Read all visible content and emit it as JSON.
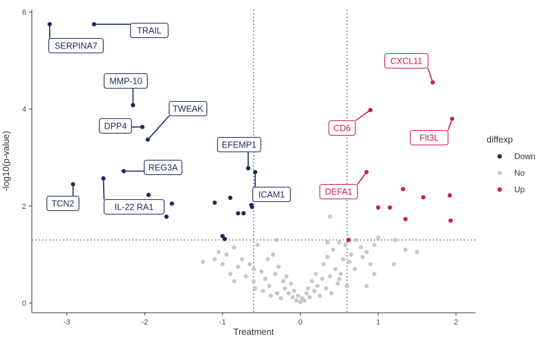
{
  "chart_data": {
    "type": "scatter",
    "title": "",
    "xlabel": "Treatment",
    "ylabel": "-log10(p-value)",
    "xlim": [
      -3.45,
      2.25
    ],
    "ylim": [
      -0.2,
      6.05
    ],
    "x_ticks": [
      -3,
      -2,
      -1,
      0,
      1,
      2
    ],
    "y_ticks": [
      0,
      2,
      4,
      6
    ],
    "grid": false,
    "thresholds": {
      "x": [
        -0.6,
        0.6
      ],
      "y": 1.3
    },
    "legend": {
      "title": "diffexp",
      "position": "right",
      "entries": [
        {
          "label": "Down",
          "color": "#1b2a5e"
        },
        {
          "label": "No",
          "color": "#c8c8c8"
        },
        {
          "label": "Up",
          "color": "#cc1a5a"
        }
      ]
    },
    "series": [
      {
        "name": "Down",
        "color": "#1b2a5e",
        "points": [
          [
            -3.22,
            5.75
          ],
          [
            -2.65,
            5.75
          ],
          [
            -2.15,
            4.08
          ],
          [
            -2.03,
            3.63
          ],
          [
            -1.96,
            3.37
          ],
          [
            -2.27,
            2.72
          ],
          [
            -2.53,
            2.57
          ],
          [
            -2.92,
            2.45
          ],
          [
            -1.95,
            2.23
          ],
          [
            -1.65,
            2.05
          ],
          [
            -1.72,
            1.78
          ],
          [
            -1.1,
            2.07
          ],
          [
            -0.9,
            2.17
          ],
          [
            -0.8,
            1.85
          ],
          [
            -0.73,
            1.85
          ],
          [
            -0.67,
            2.78
          ],
          [
            -0.58,
            2.7
          ],
          [
            -0.63,
            2.02
          ],
          [
            -0.62,
            1.98
          ],
          [
            -1.0,
            1.38
          ],
          [
            -0.97,
            1.32
          ]
        ]
      },
      {
        "name": "No",
        "color": "#c8c8c8",
        "points": [
          [
            -1.25,
            0.85
          ],
          [
            -1.1,
            0.9
          ],
          [
            -1.05,
            1.05
          ],
          [
            -1.0,
            0.8
          ],
          [
            -0.95,
            1.0
          ],
          [
            -0.9,
            0.6
          ],
          [
            -0.85,
            1.15
          ],
          [
            -0.8,
            0.75
          ],
          [
            -0.75,
            0.9
          ],
          [
            -0.7,
            0.55
          ],
          [
            -0.65,
            0.8
          ],
          [
            -0.6,
            0.45
          ],
          [
            -0.58,
            0.3
          ],
          [
            -0.55,
            1.2
          ],
          [
            -0.5,
            0.65
          ],
          [
            -0.48,
            0.25
          ],
          [
            -0.45,
            0.5
          ],
          [
            -0.42,
            0.9
          ],
          [
            -0.4,
            0.35
          ],
          [
            -0.38,
            0.15
          ],
          [
            -0.35,
            1.0
          ],
          [
            -0.32,
            0.6
          ],
          [
            -0.3,
            0.2
          ],
          [
            -0.28,
            0.75
          ],
          [
            -0.25,
            0.1
          ],
          [
            -0.22,
            0.45
          ],
          [
            -0.2,
            0.3
          ],
          [
            -0.18,
            0.55
          ],
          [
            -0.15,
            0.2
          ],
          [
            -0.12,
            0.4
          ],
          [
            -0.1,
            0.12
          ],
          [
            -0.08,
            0.25
          ],
          [
            -0.05,
            0.05
          ],
          [
            -0.03,
            0.15
          ],
          [
            0.0,
            0.02
          ],
          [
            0.02,
            0.1
          ],
          [
            0.05,
            0.05
          ],
          [
            0.08,
            0.2
          ],
          [
            0.1,
            0.3
          ],
          [
            0.12,
            0.12
          ],
          [
            0.15,
            0.45
          ],
          [
            0.18,
            0.25
          ],
          [
            0.2,
            0.6
          ],
          [
            0.22,
            0.35
          ],
          [
            0.25,
            0.15
          ],
          [
            0.28,
            0.5
          ],
          [
            0.3,
            0.8
          ],
          [
            0.33,
            0.3
          ],
          [
            0.35,
            0.95
          ],
          [
            0.38,
            0.55
          ],
          [
            0.4,
            0.2
          ],
          [
            0.42,
            1.1
          ],
          [
            0.45,
            0.7
          ],
          [
            0.48,
            0.4
          ],
          [
            0.5,
            1.25
          ],
          [
            0.52,
            0.6
          ],
          [
            0.55,
            0.9
          ],
          [
            0.58,
            1.2
          ],
          [
            0.6,
            0.35
          ],
          [
            0.63,
            0.85
          ],
          [
            0.65,
            1.0
          ],
          [
            0.7,
            0.7
          ],
          [
            0.72,
            1.3
          ],
          [
            0.78,
            1.15
          ],
          [
            0.8,
            0.95
          ],
          [
            0.85,
            1.05
          ],
          [
            0.9,
            0.8
          ],
          [
            0.95,
            1.2
          ],
          [
            1.0,
            1.35
          ],
          [
            0.35,
            1.25
          ],
          [
            -0.3,
            1.3
          ],
          [
            -0.85,
            0.45
          ],
          [
            0.85,
            0.35
          ],
          [
            0.95,
            0.6
          ],
          [
            1.2,
            0.8
          ],
          [
            1.35,
            1.1
          ],
          [
            1.5,
            1.05
          ],
          [
            1.22,
            1.3
          ],
          [
            0.5,
            0.5
          ],
          [
            -0.6,
            0.7
          ],
          [
            0.38,
            1.78
          ]
        ]
      },
      {
        "name": "Up",
        "color": "#cc1a5a",
        "points": [
          [
            1.7,
            4.55
          ],
          [
            0.9,
            3.98
          ],
          [
            1.95,
            3.8
          ],
          [
            0.85,
            2.7
          ],
          [
            1.32,
            2.35
          ],
          [
            1.92,
            2.22
          ],
          [
            1.58,
            2.18
          ],
          [
            1.0,
            1.97
          ],
          [
            1.15,
            1.97
          ],
          [
            1.35,
            1.73
          ],
          [
            1.93,
            1.7
          ],
          [
            0.62,
            1.3
          ]
        ]
      }
    ],
    "labels": [
      {
        "text": "SERPINA7",
        "group": "Down",
        "point": [
          -3.22,
          5.75
        ]
      },
      {
        "text": "TRAIL",
        "group": "Down",
        "point": [
          -2.65,
          5.75
        ]
      },
      {
        "text": "MMP-10",
        "group": "Down",
        "point": [
          -2.15,
          4.08
        ]
      },
      {
        "text": "TWEAK",
        "group": "Down",
        "point": [
          -1.96,
          3.37
        ]
      },
      {
        "text": "DPP4",
        "group": "Down",
        "point": [
          -2.03,
          3.63
        ]
      },
      {
        "text": "REG3A",
        "group": "Down",
        "point": [
          -2.27,
          2.72
        ]
      },
      {
        "text": "TCN2",
        "group": "Down",
        "point": [
          -2.92,
          2.45
        ]
      },
      {
        "text": "IL-22 RA1",
        "group": "Down",
        "point": [
          -2.53,
          2.57
        ]
      },
      {
        "text": "EFEMP1",
        "group": "Down",
        "point": [
          -0.67,
          2.78
        ]
      },
      {
        "text": "ICAM1",
        "group": "Down",
        "point": [
          -0.58,
          2.7
        ]
      },
      {
        "text": "CXCL11",
        "group": "Up",
        "point": [
          1.7,
          4.55
        ]
      },
      {
        "text": "CD6",
        "group": "Up",
        "point": [
          0.9,
          3.98
        ]
      },
      {
        "text": "Flt3L",
        "group": "Up",
        "point": [
          1.95,
          3.8
        ]
      },
      {
        "text": "DEFA1",
        "group": "Up",
        "point": [
          0.85,
          2.7
        ]
      }
    ]
  }
}
